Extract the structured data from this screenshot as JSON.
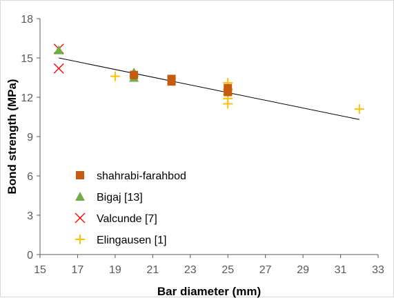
{
  "chart_data": {
    "type": "scatter",
    "title": "",
    "xlabel": "Bar diameter (mm)",
    "ylabel": "Bond strength (MPa)",
    "xlim": [
      15,
      33
    ],
    "ylim": [
      0,
      18
    ],
    "xticks": [
      "15",
      "17",
      "19",
      "21",
      "23",
      "25",
      "27",
      "29",
      "31",
      "33"
    ],
    "yticks": [
      "0",
      "3",
      "6",
      "9",
      "12",
      "15",
      "18"
    ],
    "grid": false,
    "legend_position": "bottom-left",
    "series": [
      {
        "name": "shahrabi-farahbod",
        "marker": "square",
        "color": "#C55A11",
        "points": [
          [
            20,
            13.7
          ],
          [
            22,
            13.2
          ],
          [
            22,
            13.4
          ],
          [
            25,
            12.7
          ],
          [
            25,
            12.4
          ]
        ]
      },
      {
        "name": "Bigaj [13]",
        "marker": "triangle",
        "color": "#70AD47",
        "points": [
          [
            16,
            15.6
          ],
          [
            20,
            13.9
          ],
          [
            20,
            13.5
          ]
        ]
      },
      {
        "name": "Valcunde [7]",
        "marker": "x",
        "color": "#FF0000",
        "points": [
          [
            16,
            15.7
          ],
          [
            16,
            14.2
          ]
        ]
      },
      {
        "name": "Elingausen [1]",
        "marker": "plus",
        "color": "#FFC000",
        "points": [
          [
            19,
            13.6
          ],
          [
            25,
            13.1
          ],
          [
            25,
            12.6
          ],
          [
            25,
            12.2
          ],
          [
            25,
            11.9
          ],
          [
            25,
            11.5
          ],
          [
            32,
            11.1
          ]
        ]
      }
    ],
    "trendline": {
      "color": "#000000",
      "points": [
        [
          16,
          15.0
        ],
        [
          32,
          10.3
        ]
      ]
    }
  }
}
